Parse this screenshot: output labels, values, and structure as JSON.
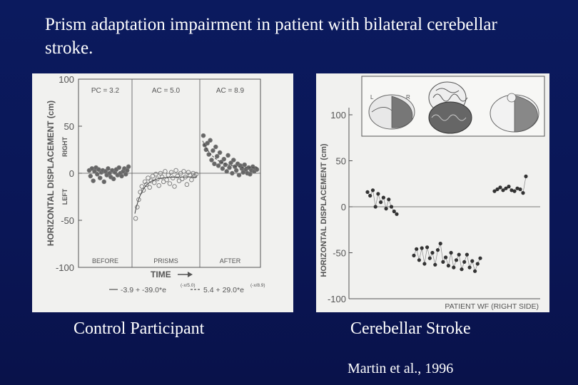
{
  "slide": {
    "title": "Prism adaptation impairment in patient with bilateral cerebellar stroke.",
    "caption_left": "Control Participant",
    "caption_right": "Cerebellar Stroke",
    "citation": "Martin et al., 1996"
  },
  "colors": {
    "background": "#0b1a5e",
    "panel": "#f1f1ef",
    "ink": "#555555",
    "text": "#ffffff"
  },
  "chart_data": [
    {
      "type": "scatter",
      "name": "control",
      "ylabel": "HORIZONTAL DISPLACEMENT (cm)",
      "y_dir_right": "RIGHT",
      "y_dir_left": "LEFT",
      "ylim": [
        -100,
        100
      ],
      "yticks": [
        "100",
        "50",
        "0",
        "-50",
        "-100"
      ],
      "xlabel": "TIME",
      "phases": [
        {
          "top_label": "PC = 3.2",
          "bottom_label": "BEFORE"
        },
        {
          "top_label": "AC = 5.0",
          "bottom_label": "PRISMS"
        },
        {
          "top_label": "AC = 8.9",
          "bottom_label": "AFTER"
        }
      ],
      "fit_left": "-3.9 + -39.0*e",
      "fit_left_exp": "(-x/5.0)",
      "fit_right": "5.4 + 29.0*e",
      "fit_right_exp": "(-x/8.9)",
      "fit_params": {
        "prisms": {
          "a": -3.9,
          "b": -39.0,
          "tau": 5.0
        },
        "after": {
          "a": 5.4,
          "b": 29.0,
          "tau": 8.9
        }
      },
      "before_y": [
        3,
        -3,
        5,
        -8,
        2,
        6,
        -1,
        4,
        -5,
        1,
        3,
        -9,
        2,
        -2,
        5,
        0,
        -4,
        3,
        -6,
        1,
        4,
        -2,
        6,
        0,
        -3,
        2,
        5,
        -1,
        3,
        7
      ],
      "prisms_y": [
        -48,
        -36,
        -28,
        -20,
        -14,
        -18,
        -9,
        -12,
        -5,
        -15,
        -8,
        -3,
        -10,
        -1,
        -6,
        -13,
        0,
        -4,
        -9,
        2,
        -7,
        -2,
        -11,
        1,
        -5,
        -14,
        3,
        -3,
        -8,
        0,
        -6,
        2,
        -4,
        -12,
        1,
        -2,
        -7,
        0,
        -3,
        -1
      ],
      "after_y": [
        40,
        30,
        25,
        32,
        20,
        35,
        14,
        24,
        10,
        28,
        18,
        8,
        22,
        12,
        5,
        15,
        9,
        2,
        19,
        6,
        11,
        0,
        14,
        7,
        3,
        10,
        -2,
        8,
        5,
        1,
        9,
        4,
        0,
        6,
        -1,
        3,
        7,
        2,
        5,
        4
      ]
    },
    {
      "type": "scatter",
      "name": "cerebellar",
      "ylabel": "HORIZONTAL DISPLACEMENT (cm)",
      "ylim": [
        -100,
        100
      ],
      "yticks": [
        "100",
        "50",
        "0",
        "-50",
        "-100"
      ],
      "xlabel": "PATIENT WF (RIGHT SIDE)",
      "inset_labels": {
        "left": "L",
        "right": "R"
      },
      "before_y": [
        16,
        12,
        18,
        0,
        14,
        5,
        10,
        -2,
        8,
        0,
        -5,
        -8
      ],
      "prisms_y": [
        -53,
        -46,
        -58,
        -45,
        -62,
        -44,
        -56,
        -50,
        -63,
        -47,
        -40,
        -60,
        -55,
        -64,
        -50,
        -66,
        -58,
        -52,
        -68,
        -60,
        -52,
        -66,
        -59,
        -70,
        -62,
        -56
      ],
      "after_y": [
        17,
        19,
        21,
        18,
        20,
        22,
        18,
        17,
        20,
        19,
        15,
        33
      ]
    }
  ]
}
